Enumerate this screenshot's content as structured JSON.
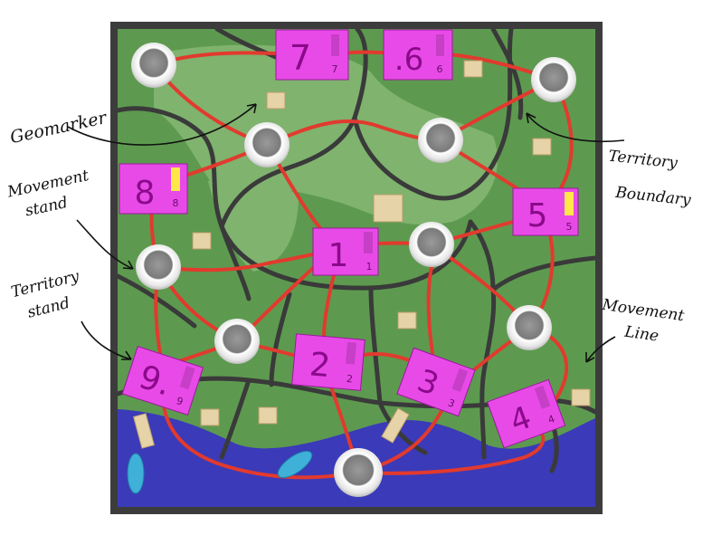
{
  "colors": {
    "frame": "#3c3c3c",
    "grass": "#5d9a4f",
    "grass_light": "#7fb36e",
    "territory_boundary": "#3a3a3a",
    "movement_line": "#e23a2e",
    "water": "#3b3ab8",
    "territory_stand": "#e84ae8",
    "stand_tab": "#ffe74a",
    "geomarker": "#e6d3a8",
    "boat": "#3fb0d8"
  },
  "annotations": {
    "geomarker": "Geomarker",
    "movement_stand_1": "Movement",
    "movement_stand_2": "stand",
    "territory_boundary_1": "Territory",
    "territory_boundary_2": "Boundary",
    "territory_stand_1": "Territory",
    "territory_stand_2": "stand",
    "movement_line_1": "Movement",
    "movement_line_2": "Line"
  },
  "territories": [
    {
      "id": "t7",
      "big": "7",
      "small": "7",
      "tab": "magenta"
    },
    {
      "id": "t6",
      "big": ".6",
      "small": "6",
      "tab": "magenta"
    },
    {
      "id": "t8",
      "big": "8",
      "small": "8",
      "tab": "yellow"
    },
    {
      "id": "t5",
      "big": "5",
      "small": "5",
      "tab": "yellow"
    },
    {
      "id": "t1",
      "big": "1",
      "small": "1",
      "tab": "magenta"
    },
    {
      "id": "t9",
      "big": "9.",
      "small": "9",
      "tab": "magenta"
    },
    {
      "id": "t2",
      "big": "2",
      "small": "2",
      "tab": "magenta"
    },
    {
      "id": "t3",
      "big": "3",
      "small": "3",
      "tab": "magenta"
    },
    {
      "id": "t4",
      "big": "4",
      "small": "4",
      "tab": "magenta"
    }
  ]
}
